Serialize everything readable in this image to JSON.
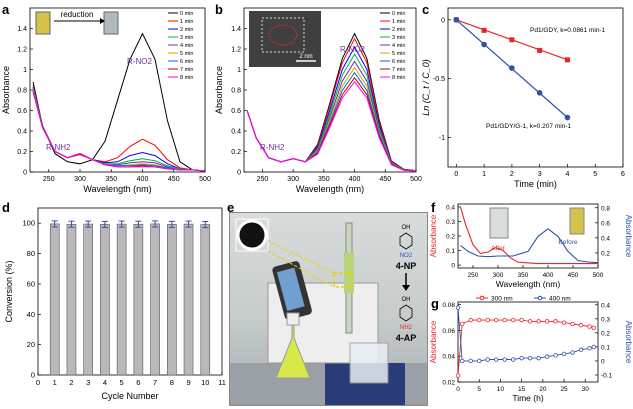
{
  "panel_letters": [
    "a",
    "b",
    "c",
    "d",
    "e",
    "f",
    "g"
  ],
  "colors": {
    "a_series": [
      "#000000",
      "#ff0000",
      "#0000ff",
      "#00b050",
      "#7030a0",
      "#d9a400",
      "#0070c0",
      "#c00000",
      "#ff00ff"
    ]
  },
  "chart_data": [
    {
      "panel": "a",
      "type": "line",
      "xlabel": "Wavelength (nm)",
      "ylabel": "Absorbance",
      "xlim": [
        220,
        500
      ],
      "ylim": [
        0,
        1.6
      ],
      "xticks": [
        250,
        300,
        350,
        400,
        450,
        500
      ],
      "yticks": [
        0.0,
        0.2,
        0.4,
        0.6,
        0.8,
        1.0,
        1.2,
        1.4
      ],
      "annotations": [
        "reduction",
        "R-NO2",
        "R-NH2"
      ],
      "legend": "top-right",
      "series": [
        {
          "name": "0 min",
          "values": [
            [
              225,
              0.88
            ],
            [
              240,
              0.45
            ],
            [
              260,
              0.18
            ],
            [
              280,
              0.1
            ],
            [
              300,
              0.08
            ],
            [
              320,
              0.12
            ],
            [
              340,
              0.3
            ],
            [
              360,
              0.7
            ],
            [
              380,
              1.1
            ],
            [
              400,
              1.35
            ],
            [
              420,
              1.1
            ],
            [
              440,
              0.5
            ],
            [
              460,
              0.1
            ],
            [
              480,
              0.02
            ],
            [
              500,
              0.01
            ]
          ]
        },
        {
          "name": "1 min",
          "values": [
            [
              225,
              0.85
            ],
            [
              240,
              0.45
            ],
            [
              260,
              0.2
            ],
            [
              280,
              0.14
            ],
            [
              300,
              0.17
            ],
            [
              320,
              0.12
            ],
            [
              340,
              0.1
            ],
            [
              360,
              0.14
            ],
            [
              380,
              0.25
            ],
            [
              400,
              0.32
            ],
            [
              420,
              0.26
            ],
            [
              440,
              0.12
            ],
            [
              460,
              0.04
            ],
            [
              480,
              0.02
            ],
            [
              500,
              0.01
            ]
          ]
        },
        {
          "name": "2 min",
          "values": [
            [
              225,
              0.83
            ],
            [
              240,
              0.45
            ],
            [
              260,
              0.2
            ],
            [
              280,
              0.14
            ],
            [
              300,
              0.18
            ],
            [
              320,
              0.12
            ],
            [
              340,
              0.09
            ],
            [
              360,
              0.1
            ],
            [
              380,
              0.16
            ],
            [
              400,
              0.19
            ],
            [
              420,
              0.16
            ],
            [
              440,
              0.08
            ],
            [
              460,
              0.03
            ],
            [
              480,
              0.02
            ],
            [
              500,
              0.01
            ]
          ]
        },
        {
          "name": "3 min",
          "values": [
            [
              225,
              0.82
            ],
            [
              240,
              0.45
            ],
            [
              260,
              0.2
            ],
            [
              280,
              0.14
            ],
            [
              300,
              0.18
            ],
            [
              320,
              0.12
            ],
            [
              340,
              0.08
            ],
            [
              360,
              0.08
            ],
            [
              380,
              0.11
            ],
            [
              400,
              0.13
            ],
            [
              420,
              0.11
            ],
            [
              440,
              0.06
            ],
            [
              460,
              0.03
            ],
            [
              480,
              0.02
            ],
            [
              500,
              0.01
            ]
          ]
        },
        {
          "name": "4 min",
          "values": [
            [
              225,
              0.8
            ],
            [
              240,
              0.44
            ],
            [
              260,
              0.2
            ],
            [
              280,
              0.14
            ],
            [
              300,
              0.18
            ],
            [
              320,
              0.12
            ],
            [
              340,
              0.07
            ],
            [
              360,
              0.07
            ],
            [
              380,
              0.09
            ],
            [
              400,
              0.1
            ],
            [
              420,
              0.09
            ],
            [
              440,
              0.05
            ],
            [
              460,
              0.02
            ],
            [
              480,
              0.02
            ],
            [
              500,
              0.01
            ]
          ]
        },
        {
          "name": "5 min",
          "values": [
            [
              225,
              0.8
            ],
            [
              240,
              0.44
            ],
            [
              260,
              0.2
            ],
            [
              280,
              0.14
            ],
            [
              300,
              0.18
            ],
            [
              320,
              0.12
            ],
            [
              340,
              0.07
            ],
            [
              360,
              0.06
            ],
            [
              380,
              0.07
            ],
            [
              400,
              0.08
            ],
            [
              420,
              0.07
            ],
            [
              440,
              0.04
            ],
            [
              460,
              0.02
            ],
            [
              480,
              0.02
            ],
            [
              500,
              0.01
            ]
          ]
        },
        {
          "name": "6 min",
          "values": [
            [
              225,
              0.79
            ],
            [
              240,
              0.44
            ],
            [
              260,
              0.2
            ],
            [
              280,
              0.14
            ],
            [
              300,
              0.18
            ],
            [
              320,
              0.12
            ],
            [
              340,
              0.07
            ],
            [
              360,
              0.06
            ],
            [
              380,
              0.06
            ],
            [
              400,
              0.07
            ],
            [
              420,
              0.06
            ],
            [
              440,
              0.04
            ],
            [
              460,
              0.02
            ],
            [
              480,
              0.02
            ],
            [
              500,
              0.01
            ]
          ]
        },
        {
          "name": "7 min",
          "values": [
            [
              225,
              0.78
            ],
            [
              240,
              0.44
            ],
            [
              260,
              0.2
            ],
            [
              280,
              0.14
            ],
            [
              300,
              0.18
            ],
            [
              320,
              0.12
            ],
            [
              340,
              0.07
            ],
            [
              360,
              0.05
            ],
            [
              380,
              0.05
            ],
            [
              400,
              0.06
            ],
            [
              420,
              0.05
            ],
            [
              440,
              0.03
            ],
            [
              460,
              0.02
            ],
            [
              480,
              0.02
            ],
            [
              500,
              0.01
            ]
          ]
        },
        {
          "name": "8 min",
          "values": [
            [
              225,
              0.78
            ],
            [
              240,
              0.43
            ],
            [
              260,
              0.2
            ],
            [
              280,
              0.14
            ],
            [
              300,
              0.18
            ],
            [
              320,
              0.12
            ],
            [
              340,
              0.07
            ],
            [
              360,
              0.05
            ],
            [
              380,
              0.05
            ],
            [
              400,
              0.05
            ],
            [
              420,
              0.05
            ],
            [
              440,
              0.03
            ],
            [
              460,
              0.02
            ],
            [
              480,
              0.02
            ],
            [
              500,
              0.01
            ]
          ]
        }
      ]
    },
    {
      "panel": "b",
      "type": "line",
      "xlabel": "Wavelength (nm)",
      "ylabel": "Absorbance",
      "xlim": [
        220,
        500
      ],
      "ylim": [
        0,
        1.6
      ],
      "xticks": [
        250,
        300,
        350,
        400,
        450,
        500
      ],
      "yticks": [
        0.0,
        0.2,
        0.4,
        0.6,
        0.8,
        1.0,
        1.2,
        1.4
      ],
      "annotations": [
        "R-NO2",
        "R-NH2",
        "2 nm"
      ],
      "legend": "top-right",
      "series": [
        {
          "name": "0 min",
          "peak": 1.35
        },
        {
          "name": "1 min",
          "peak": 1.3
        },
        {
          "name": "2 min",
          "peak": 1.22
        },
        {
          "name": "3 min",
          "peak": 1.15
        },
        {
          "name": "4 min",
          "peak": 1.08
        },
        {
          "name": "5 min",
          "peak": 1.02
        },
        {
          "name": "6 min",
          "peak": 0.97
        },
        {
          "name": "7 min",
          "peak": 0.92
        },
        {
          "name": "8 min",
          "peak": 0.88
        }
      ]
    },
    {
      "panel": "c",
      "type": "scatter",
      "xlabel": "Time (min)",
      "ylabel": "Ln (C_t / C_0)",
      "xlim": [
        -0.3,
        6
      ],
      "ylim": [
        -1.25,
        0.1
      ],
      "xticks": [
        0,
        1,
        2,
        3,
        4,
        5,
        6
      ],
      "yticks": [
        0.0,
        -0.5,
        -1.0
      ],
      "series": [
        {
          "name": "Pd1/GDY, k=0.0861 min-1",
          "color": "#e8262a",
          "x": [
            0,
            1,
            2,
            3,
            4
          ],
          "y": [
            0,
            -0.09,
            -0.17,
            -0.26,
            -0.34
          ]
        },
        {
          "name": "Pd1/GDY/G-1, k=0.207 min-1",
          "color": "#2e54a6",
          "x": [
            0,
            1,
            2,
            3,
            4
          ],
          "y": [
            0,
            -0.21,
            -0.41,
            -0.62,
            -0.83
          ]
        }
      ]
    },
    {
      "panel": "d",
      "type": "bar",
      "xlabel": "Cycle Number",
      "ylabel": "Conversion (%)",
      "ylim": [
        0,
        110
      ],
      "yticks": [
        0,
        20,
        40,
        60,
        80,
        100
      ],
      "xticks": [
        "0",
        "1",
        "2",
        "3",
        "4",
        "5",
        "6",
        "7",
        "8",
        "9",
        "10",
        "11"
      ],
      "categories": [
        "1",
        "2",
        "3",
        "4",
        "5",
        "6",
        "7",
        "8",
        "9",
        "10"
      ],
      "values": [
        99.5,
        99.3,
        99.4,
        99.2,
        99.4,
        99.3,
        99.5,
        99.2,
        99.4,
        99.1
      ],
      "error": 2
    },
    {
      "panel": "f",
      "type": "line",
      "xlabel": "Wavelength (nm)",
      "ylabel": "Absorbance",
      "ylabel_right": "Absorbance",
      "xlim": [
        220,
        500
      ],
      "ylim": [
        -0.02,
        0.42
      ],
      "ylim_right": [
        0.0,
        0.85
      ],
      "xticks": [
        250,
        300,
        350,
        400,
        450,
        500
      ],
      "yticks": [
        0.0,
        0.1,
        0.2,
        0.3,
        0.4
      ],
      "yticks_right": [
        0.2,
        0.4,
        0.6,
        0.8
      ],
      "series": [
        {
          "name": "After",
          "color": "#e8262a",
          "axis": "left",
          "values": [
            [
              225,
              0.4
            ],
            [
              235,
              0.28
            ],
            [
              250,
              0.14
            ],
            [
              265,
              0.08
            ],
            [
              280,
              0.09
            ],
            [
              295,
              0.12
            ],
            [
              310,
              0.1
            ],
            [
              325,
              0.05
            ],
            [
              340,
              0.02
            ],
            [
              380,
              0.01
            ],
            [
              450,
              0.01
            ],
            [
              500,
              0.01
            ]
          ]
        },
        {
          "name": "Before",
          "color": "#2e54a6",
          "axis": "right",
          "values": [
            [
              225,
              0.3
            ],
            [
              240,
              0.22
            ],
            [
              260,
              0.16
            ],
            [
              280,
              0.15
            ],
            [
              300,
              0.16
            ],
            [
              330,
              0.16
            ],
            [
              360,
              0.22
            ],
            [
              380,
              0.42
            ],
            [
              400,
              0.52
            ],
            [
              420,
              0.42
            ],
            [
              440,
              0.22
            ],
            [
              460,
              0.1
            ],
            [
              480,
              0.08
            ],
            [
              500,
              0.07
            ]
          ]
        }
      ]
    },
    {
      "panel": "g",
      "type": "line",
      "xlabel": "Time (h)",
      "ylabel": "Absorbance",
      "ylabel_right": "Absorbance",
      "legend": [
        "300 nm",
        "400 nm"
      ],
      "xlim": [
        0,
        33
      ],
      "ylim": [
        0.02,
        0.082
      ],
      "ylim_right": [
        -0.15,
        0.42
      ],
      "xticks": [
        0,
        5,
        10,
        15,
        20,
        25,
        30
      ],
      "yticks": [
        0.02,
        0.04,
        0.06,
        0.08
      ],
      "yticks_right": [
        -0.1,
        0.0,
        0.1,
        0.2,
        0.3,
        0.4
      ],
      "series": [
        {
          "name": "300 nm",
          "color": "#e8262a",
          "axis": "left",
          "x": [
            0,
            1,
            3,
            5,
            7,
            9,
            11,
            13,
            15,
            17,
            19,
            21,
            23,
            25,
            27,
            29,
            31,
            32
          ],
          "y": [
            0.025,
            0.065,
            0.068,
            0.068,
            0.068,
            0.068,
            0.068,
            0.068,
            0.068,
            0.067,
            0.067,
            0.067,
            0.067,
            0.066,
            0.065,
            0.064,
            0.063,
            0.062
          ]
        },
        {
          "name": "400 nm",
          "color": "#2e54a6",
          "axis": "right",
          "x": [
            0,
            1,
            3,
            5,
            7,
            9,
            11,
            13,
            15,
            17,
            19,
            21,
            23,
            25,
            27,
            29,
            31,
            32
          ],
          "y": [
            0.38,
            0.0,
            0.0,
            0.0,
            0.01,
            0.01,
            0.01,
            0.01,
            0.02,
            0.02,
            0.02,
            0.03,
            0.04,
            0.05,
            0.06,
            0.08,
            0.09,
            0.1
          ]
        }
      ]
    }
  ],
  "photo_labels": {
    "after": "After",
    "before": "Before",
    "np_oh": "OH",
    "np_no2": "NO2",
    "np_name": "4-NP",
    "ap_oh": "OH",
    "ap_nh2": "NH2",
    "ap_name": "4-AP"
  }
}
